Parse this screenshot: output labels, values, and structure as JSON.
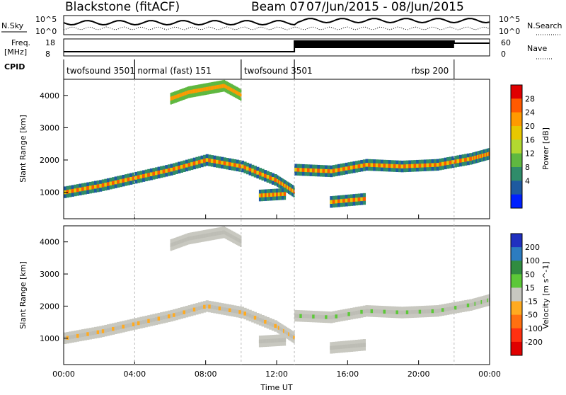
{
  "header": {
    "station": "Blackstone (fitACF)",
    "beam": "Beam 07",
    "date_range": "07/Jun/2015 - 08/Jun/2015"
  },
  "status_panels": {
    "nsky_label": "N.Sky",
    "nsearch_label": "N.Search",
    "freq_label_1": "Freq.",
    "freq_label_2": "[MHz]",
    "nave_label": "Nave",
    "cpid_label": "CPID",
    "noise_left_ticks": [
      "10^5",
      "10^0"
    ],
    "noise_right_ticks": [
      "10^5",
      "10^0"
    ],
    "freq_ticks": [
      "18",
      "8"
    ],
    "nave_ticks": [
      "60",
      "0"
    ],
    "cpid_segments": [
      {
        "label": "twofsound 3501",
        "start_h": 0.0,
        "end_h": 4.0
      },
      {
        "label": "normal (fast) 151",
        "start_h": 4.0,
        "end_h": 10.0
      },
      {
        "label": "twofsound 3501",
        "start_h": 10.0,
        "end_h": 13.0
      },
      {
        "label": "rbsp 200",
        "start_h": 13.0,
        "end_h": 22.0
      }
    ]
  },
  "chart_data": [
    {
      "type": "heatmap",
      "title": "Power",
      "ylabel": "Slant Range [km]",
      "xlabel": "Time UT",
      "colorbar_label": "Power [dB]",
      "colorbar_ticks": [
        "28",
        "24",
        "20",
        "16",
        "12",
        "8",
        "4"
      ],
      "colorbar_colors": [
        "#e00000",
        "#ff5a00",
        "#ff9a00",
        "#e8c800",
        "#b2d830",
        "#5fb840",
        "#2f8c6a",
        "#1e5aa0",
        "#0020ff"
      ],
      "y_ticks": [
        "4000",
        "3000",
        "2000",
        "1000"
      ],
      "ylim": [
        180,
        4500
      ],
      "xlim_hours": [
        0,
        24
      ],
      "echo_bands": [
        {
          "x": [
            0,
            2,
            4,
            6,
            8,
            10,
            12,
            13
          ],
          "y": [
            1000,
            1200,
            1450,
            1700,
            2000,
            1800,
            1350,
            1000
          ]
        },
        {
          "x": [
            13,
            15,
            17,
            19,
            21,
            23,
            24
          ],
          "y": [
            1700,
            1650,
            1850,
            1800,
            1850,
            2050,
            2200
          ]
        },
        {
          "x": [
            11,
            12.5
          ],
          "y": [
            900,
            950
          ]
        },
        {
          "x": [
            15,
            17
          ],
          "y": [
            700,
            800
          ]
        },
        {
          "x": [
            6,
            7,
            8,
            9,
            10
          ],
          "y": [
            3900,
            4100,
            4200,
            4300,
            4000
          ]
        }
      ]
    },
    {
      "type": "heatmap",
      "title": "Velocity",
      "ylabel": "Slant Range [km]",
      "xlabel": "Time UT",
      "colorbar_label": "Velocity [m s^-1]",
      "colorbar_ticks": [
        "200",
        "100",
        "50",
        "15",
        "-15",
        "-50",
        "-100",
        "-200"
      ],
      "colorbar_colors": [
        "#2030c0",
        "#2c7cc0",
        "#308c40",
        "#5cc838",
        "#c8c8c0",
        "#ffaa20",
        "#ff7010",
        "#ff3010",
        "#e00000"
      ],
      "y_ticks": [
        "4000",
        "3000",
        "2000",
        "1000"
      ],
      "ylim": [
        180,
        4500
      ],
      "xlim_hours": [
        0,
        24
      ]
    }
  ],
  "x_ticks": [
    "00:00",
    "04:00",
    "08:00",
    "12:00",
    "16:00",
    "20:00",
    "00:00"
  ],
  "x_axis_label": "Time UT"
}
